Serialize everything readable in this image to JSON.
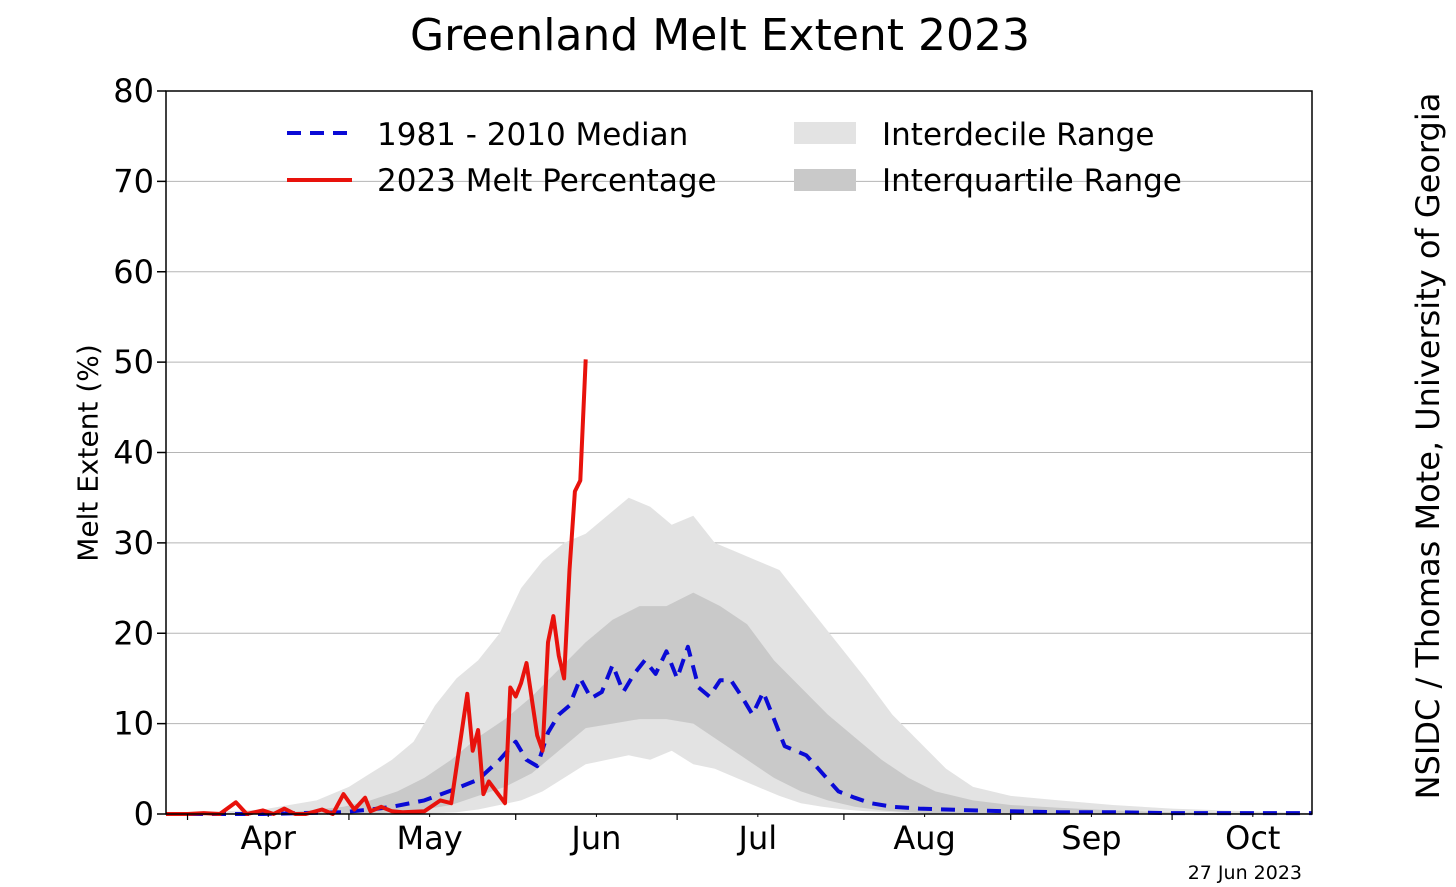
{
  "chart_data": {
    "type": "line",
    "title": "Greenland Melt Extent 2023",
    "ylabel": "Melt Extent (%)",
    "xlabel": "",
    "ylim": [
      0,
      80
    ],
    "y_ticks": [
      0,
      10,
      20,
      30,
      40,
      50,
      60,
      70,
      80
    ],
    "x_ticks": [
      "Apr",
      "May",
      "Jun",
      "Jul",
      "Aug",
      "Sep",
      "Oct"
    ],
    "x_range": [
      "2023-03-28",
      "2023-10-27"
    ],
    "grid": "horizontal",
    "legend_position": "top",
    "credit": "NSIDC / Thomas Mote, University of Georgia",
    "date_label": "27 Jun 2023",
    "colors": {
      "melt_2023": "#e8120c",
      "median": "#0a0ad6",
      "interdecile": "#e3e3e3",
      "interquartile": "#c9c9c9",
      "grid": "#b5b5b5"
    },
    "legend": [
      {
        "label": "1981 - 2010 Median",
        "style": "dashed-blue"
      },
      {
        "label": "2023 Melt Percentage",
        "style": "solid-red"
      },
      {
        "label": "Interdecile Range",
        "style": "light-gray-fill"
      },
      {
        "label": "Interquartile Range",
        "style": "dark-gray-fill"
      }
    ],
    "series": [
      {
        "name": "2023 Melt Percentage",
        "x": [
          "2023-03-28",
          "2023-04-01",
          "2023-04-04",
          "2023-04-07",
          "2023-04-10",
          "2023-04-12",
          "2023-04-15",
          "2023-04-17",
          "2023-04-19",
          "2023-04-21",
          "2023-04-23",
          "2023-04-26",
          "2023-04-28",
          "2023-04-30",
          "2023-05-02",
          "2023-05-04",
          "2023-05-05",
          "2023-05-07",
          "2023-05-09",
          "2023-05-11",
          "2023-05-15",
          "2023-05-18",
          "2023-05-20",
          "2023-05-23",
          "2023-05-24",
          "2023-05-25",
          "2023-05-26",
          "2023-05-27",
          "2023-05-29",
          "2023-05-30",
          "2023-05-31",
          "2023-06-01",
          "2023-06-02",
          "2023-06-03",
          "2023-06-05",
          "2023-06-06",
          "2023-06-07",
          "2023-06-08",
          "2023-06-09",
          "2023-06-10",
          "2023-06-11",
          "2023-06-12",
          "2023-06-13",
          "2023-06-14",
          "2023-06-15",
          "2023-06-16",
          "2023-06-17",
          "2023-06-18"
        ],
        "y": [
          0,
          0,
          0.1,
          0,
          1.3,
          0,
          0.4,
          0,
          0.6,
          0,
          0,
          0.5,
          0,
          2.2,
          0.5,
          1.8,
          0.3,
          0.8,
          0.3,
          0.2,
          0.3,
          1.5,
          1.2,
          13.3,
          7.0,
          9.3,
          2.2,
          3.6,
          2.0,
          1.2,
          14.0,
          13.0,
          14.5,
          16.7,
          8.7,
          7.0,
          19.0,
          21.9,
          17.5,
          15.0,
          27.0,
          35.7,
          36.9,
          50.3,
          null,
          null,
          null,
          null
        ]
      },
      {
        "name": "1981 - 2010 Median",
        "x": [
          "2023-03-28",
          "2023-04-15",
          "2023-04-30",
          "2023-05-05",
          "2023-05-09",
          "2023-05-15",
          "2023-05-20",
          "2023-05-25",
          "2023-05-29",
          "2023-06-01",
          "2023-06-03",
          "2023-06-05",
          "2023-06-07",
          "2023-06-09",
          "2023-06-11",
          "2023-06-13",
          "2023-06-15",
          "2023-06-17",
          "2023-06-19",
          "2023-06-21",
          "2023-06-23",
          "2023-06-25",
          "2023-06-27",
          "2023-06-29",
          "2023-07-01",
          "2023-07-03",
          "2023-07-05",
          "2023-07-07",
          "2023-07-09",
          "2023-07-11",
          "2023-07-13",
          "2023-07-15",
          "2023-07-17",
          "2023-07-19",
          "2023-07-21",
          "2023-07-23",
          "2023-07-25",
          "2023-07-28",
          "2023-07-31",
          "2023-08-03",
          "2023-08-06",
          "2023-08-10",
          "2023-08-15",
          "2023-08-20",
          "2023-08-25",
          "2023-09-01",
          "2023-09-10",
          "2023-09-20",
          "2023-10-01",
          "2023-10-15",
          "2023-10-27"
        ],
        "y": [
          0,
          0,
          0.2,
          0.5,
          0.8,
          1.5,
          2.6,
          3.8,
          6.0,
          8.0,
          6.0,
          5.3,
          9.0,
          11.0,
          12.0,
          15.0,
          12.8,
          13.5,
          16.5,
          13.5,
          15.5,
          17.0,
          15.5,
          18.0,
          15.0,
          18.5,
          14.0,
          13.0,
          14.8,
          14.8,
          13.0,
          11.0,
          13.5,
          10.5,
          7.5,
          7.0,
          6.5,
          4.5,
          2.5,
          1.8,
          1.2,
          0.8,
          0.6,
          0.5,
          0.4,
          0.3,
          0.2,
          0.2,
          0.1,
          0.1,
          0.1
        ]
      }
    ],
    "interdecile_range": {
      "x": [
        "2023-03-28",
        "2023-04-15",
        "2023-04-25",
        "2023-05-01",
        "2023-05-05",
        "2023-05-09",
        "2023-05-13",
        "2023-05-17",
        "2023-05-21",
        "2023-05-25",
        "2023-05-29",
        "2023-06-02",
        "2023-06-06",
        "2023-06-10",
        "2023-06-14",
        "2023-06-18",
        "2023-06-22",
        "2023-06-26",
        "2023-06-30",
        "2023-07-04",
        "2023-07-08",
        "2023-07-12",
        "2023-07-16",
        "2023-07-20",
        "2023-07-24",
        "2023-07-28",
        "2023-08-01",
        "2023-08-05",
        "2023-08-10",
        "2023-08-15",
        "2023-08-20",
        "2023-08-25",
        "2023-09-01",
        "2023-09-10",
        "2023-09-20",
        "2023-10-01",
        "2023-10-15",
        "2023-10-27"
      ],
      "lower": [
        0,
        0,
        0,
        0,
        0,
        0,
        0,
        0.1,
        0.2,
        0.5,
        1.0,
        1.5,
        2.5,
        4.0,
        5.5,
        6.0,
        6.5,
        6.0,
        7.0,
        5.5,
        5.0,
        4.0,
        3.0,
        2.0,
        1.2,
        0.8,
        0.5,
        0.3,
        0.2,
        0.1,
        0,
        0,
        0,
        0,
        0,
        0,
        0,
        0
      ],
      "upper": [
        0,
        0.5,
        1.5,
        3.0,
        4.5,
        6.0,
        8.0,
        12.0,
        15.0,
        17.0,
        20.0,
        25.0,
        28.0,
        30.0,
        31.0,
        33.0,
        35.0,
        34.0,
        32.0,
        33.0,
        30.0,
        29.0,
        28.0,
        27.0,
        24.0,
        21.0,
        18.0,
        15.0,
        11.0,
        8.0,
        5.0,
        3.0,
        2.0,
        1.5,
        1.0,
        0.6,
        0.3,
        0.1
      ]
    },
    "interquartile_range": {
      "x": [
        "2023-03-28",
        "2023-04-20",
        "2023-04-30",
        "2023-05-05",
        "2023-05-10",
        "2023-05-15",
        "2023-05-20",
        "2023-05-25",
        "2023-05-30",
        "2023-06-04",
        "2023-06-09",
        "2023-06-14",
        "2023-06-19",
        "2023-06-24",
        "2023-06-29",
        "2023-07-04",
        "2023-07-09",
        "2023-07-14",
        "2023-07-19",
        "2023-07-24",
        "2023-07-29",
        "2023-08-03",
        "2023-08-08",
        "2023-08-13",
        "2023-08-18",
        "2023-08-25",
        "2023-09-01",
        "2023-09-10",
        "2023-09-20",
        "2023-10-01",
        "2023-10-15",
        "2023-10-27"
      ],
      "lower": [
        0,
        0,
        0,
        0,
        0.2,
        0.5,
        1.0,
        2.0,
        3.0,
        4.5,
        7.0,
        9.5,
        10.0,
        10.5,
        10.5,
        10.0,
        8.0,
        6.0,
        4.0,
        2.5,
        1.5,
        0.8,
        0.4,
        0.2,
        0.1,
        0.1,
        0,
        0,
        0,
        0,
        0,
        0
      ],
      "upper": [
        0,
        0.2,
        0.8,
        1.5,
        2.5,
        4.0,
        6.0,
        8.5,
        10.5,
        13.0,
        16.0,
        19.0,
        21.5,
        23.0,
        23.0,
        24.5,
        23.0,
        21.0,
        17.0,
        14.0,
        11.0,
        8.5,
        6.0,
        4.0,
        2.5,
        1.5,
        1.0,
        0.7,
        0.4,
        0.2,
        0.1,
        0.05
      ]
    }
  }
}
